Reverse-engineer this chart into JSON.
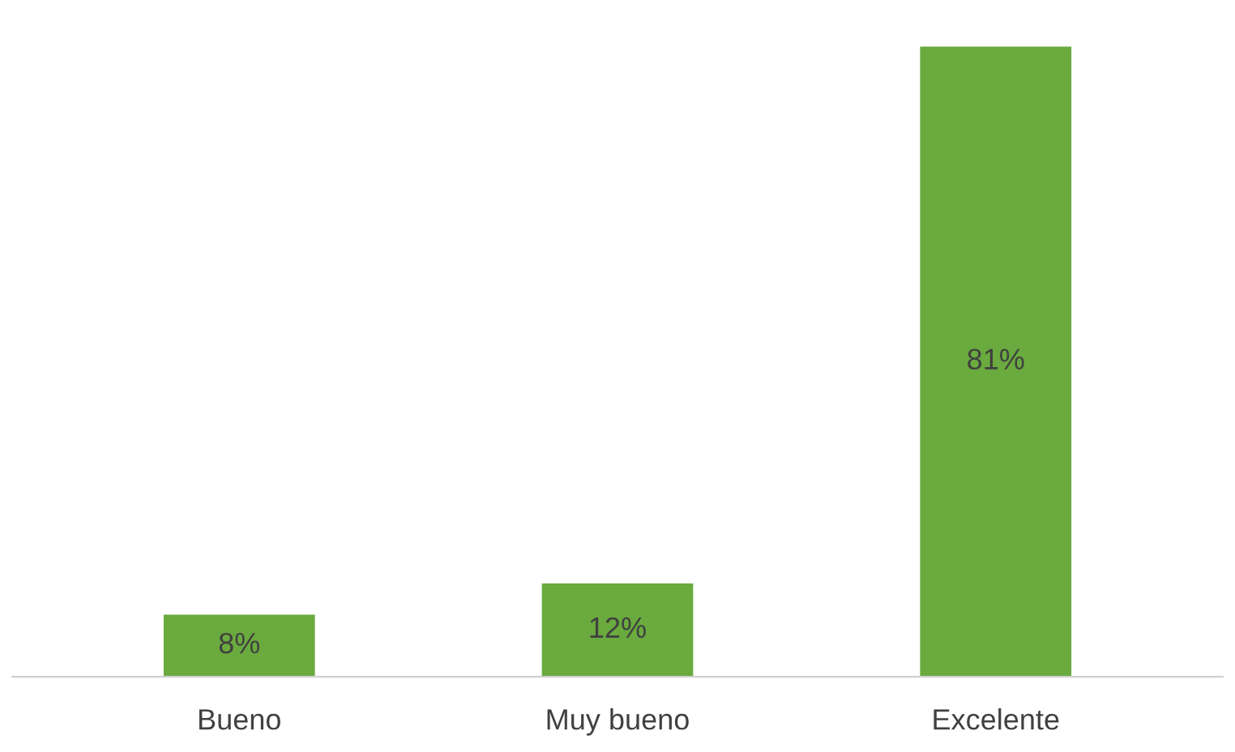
{
  "chart_data": {
    "type": "bar",
    "categories": [
      "Bueno",
      "Muy bueno",
      "Excelente"
    ],
    "values": [
      8,
      12,
      81
    ],
    "value_labels": [
      "8%",
      "12%",
      "81%"
    ],
    "color": "#6aaa3e",
    "grid": false,
    "legend": false
  }
}
